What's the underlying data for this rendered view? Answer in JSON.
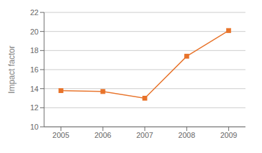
{
  "chart_data": {
    "type": "line",
    "x": [
      2005,
      2006,
      2007,
      2008,
      2009
    ],
    "values": [
      13.8,
      13.7,
      13.0,
      17.4,
      20.1
    ],
    "color": "#E8732A",
    "marker": "square",
    "ylabel": "Impact factor",
    "xlim": [
      2004.6,
      2009.4
    ],
    "ylim": [
      10,
      22
    ],
    "xticks": [
      2005,
      2006,
      2007,
      2008,
      2009
    ],
    "yticks": [
      10,
      12,
      14,
      16,
      18,
      20,
      22
    ],
    "grid": "y"
  }
}
